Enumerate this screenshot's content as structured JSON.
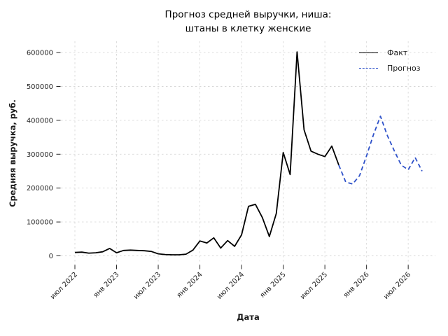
{
  "chart_data": {
    "type": "line",
    "title_line1": "Прогноз средней выручки, ниша:",
    "title_line2": "штаны в клетку женские",
    "xlabel": "Дата",
    "ylabel": "Средняя выручка, руб.",
    "ylim": [
      -27000,
      632000
    ],
    "y_ticks": [
      0,
      100000,
      200000,
      300000,
      400000,
      500000,
      600000
    ],
    "x_ticks": [
      {
        "label": "июл 2022",
        "month": "2022-07"
      },
      {
        "label": "янв 2023",
        "month": "2023-01"
      },
      {
        "label": "июл 2023",
        "month": "2023-07"
      },
      {
        "label": "янв 2024",
        "month": "2024-01"
      },
      {
        "label": "июл 2024",
        "month": "2024-07"
      },
      {
        "label": "янв 2025",
        "month": "2025-01"
      },
      {
        "label": "июл 2025",
        "month": "2025-07"
      },
      {
        "label": "янв 2026",
        "month": "2026-01"
      },
      {
        "label": "июл 2026",
        "month": "2026-07"
      }
    ],
    "grid": true,
    "legend_position": "upper right",
    "series": [
      {
        "name": "Факт",
        "color": "#000000",
        "dash": false,
        "points": [
          [
            "2022-07",
            10000
          ],
          [
            "2022-08",
            11000
          ],
          [
            "2022-09",
            8000
          ],
          [
            "2022-10",
            9000
          ],
          [
            "2022-11",
            12000
          ],
          [
            "2022-12",
            22000
          ],
          [
            "2023-01",
            9000
          ],
          [
            "2023-02",
            16000
          ],
          [
            "2023-03",
            17000
          ],
          [
            "2023-04",
            16000
          ],
          [
            "2023-05",
            15000
          ],
          [
            "2023-06",
            13000
          ],
          [
            "2023-07",
            6000
          ],
          [
            "2023-08",
            4000
          ],
          [
            "2023-09",
            3000
          ],
          [
            "2023-10",
            3000
          ],
          [
            "2023-11",
            5000
          ],
          [
            "2023-12",
            17000
          ],
          [
            "2024-01",
            44000
          ],
          [
            "2024-02",
            38000
          ],
          [
            "2024-03",
            53000
          ],
          [
            "2024-04",
            23000
          ],
          [
            "2024-05",
            45000
          ],
          [
            "2024-06",
            28000
          ],
          [
            "2024-07",
            62000
          ],
          [
            "2024-08",
            146000
          ],
          [
            "2024-09",
            152000
          ],
          [
            "2024-10",
            113000
          ],
          [
            "2024-11",
            57000
          ],
          [
            "2024-12",
            125000
          ],
          [
            "2025-01",
            305000
          ],
          [
            "2025-02",
            240000
          ],
          [
            "2025-03",
            602000
          ],
          [
            "2025-04",
            372000
          ],
          [
            "2025-05",
            309000
          ],
          [
            "2025-06",
            300000
          ],
          [
            "2025-07",
            293000
          ],
          [
            "2025-08",
            324000
          ],
          [
            "2025-09",
            268000
          ]
        ]
      },
      {
        "name": "Прогноз",
        "color": "#2e51c9",
        "dash": true,
        "points": [
          [
            "2025-09",
            268000
          ],
          [
            "2025-10",
            218000
          ],
          [
            "2025-11",
            212000
          ],
          [
            "2025-12",
            237000
          ],
          [
            "2026-01",
            295000
          ],
          [
            "2026-02",
            358000
          ],
          [
            "2026-03",
            412000
          ],
          [
            "2026-04",
            355000
          ],
          [
            "2026-05",
            310000
          ],
          [
            "2026-06",
            268000
          ],
          [
            "2026-07",
            254000
          ],
          [
            "2026-08",
            290000
          ],
          [
            "2026-09",
            250000
          ]
        ]
      }
    ]
  }
}
